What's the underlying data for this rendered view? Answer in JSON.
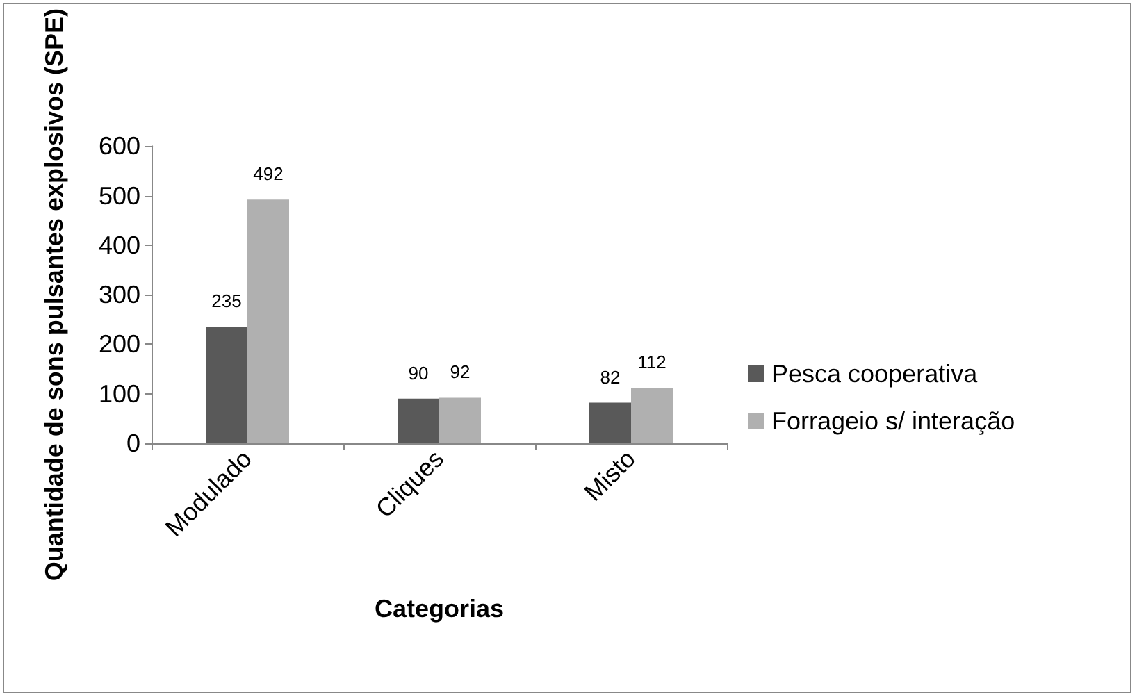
{
  "chart_data": {
    "type": "bar",
    "xlabel": "Categorias",
    "ylabel": "Quantidade de sons pulsantes explosivos (SPE)",
    "categories": [
      "Modulado",
      "Cliques",
      "Misto"
    ],
    "series": [
      {
        "name": "Pesca cooperativa",
        "color": "#595959",
        "values": [
          235,
          90,
          82
        ]
      },
      {
        "name": "Forrageio s/ interação",
        "color": "#b0b0b0",
        "values": [
          492,
          92,
          112
        ]
      }
    ],
    "ylim": [
      0,
      600
    ],
    "yticks": [
      0,
      100,
      200,
      300,
      400,
      500,
      600
    ],
    "grid": false,
    "legend": "right",
    "data_labels": true
  }
}
